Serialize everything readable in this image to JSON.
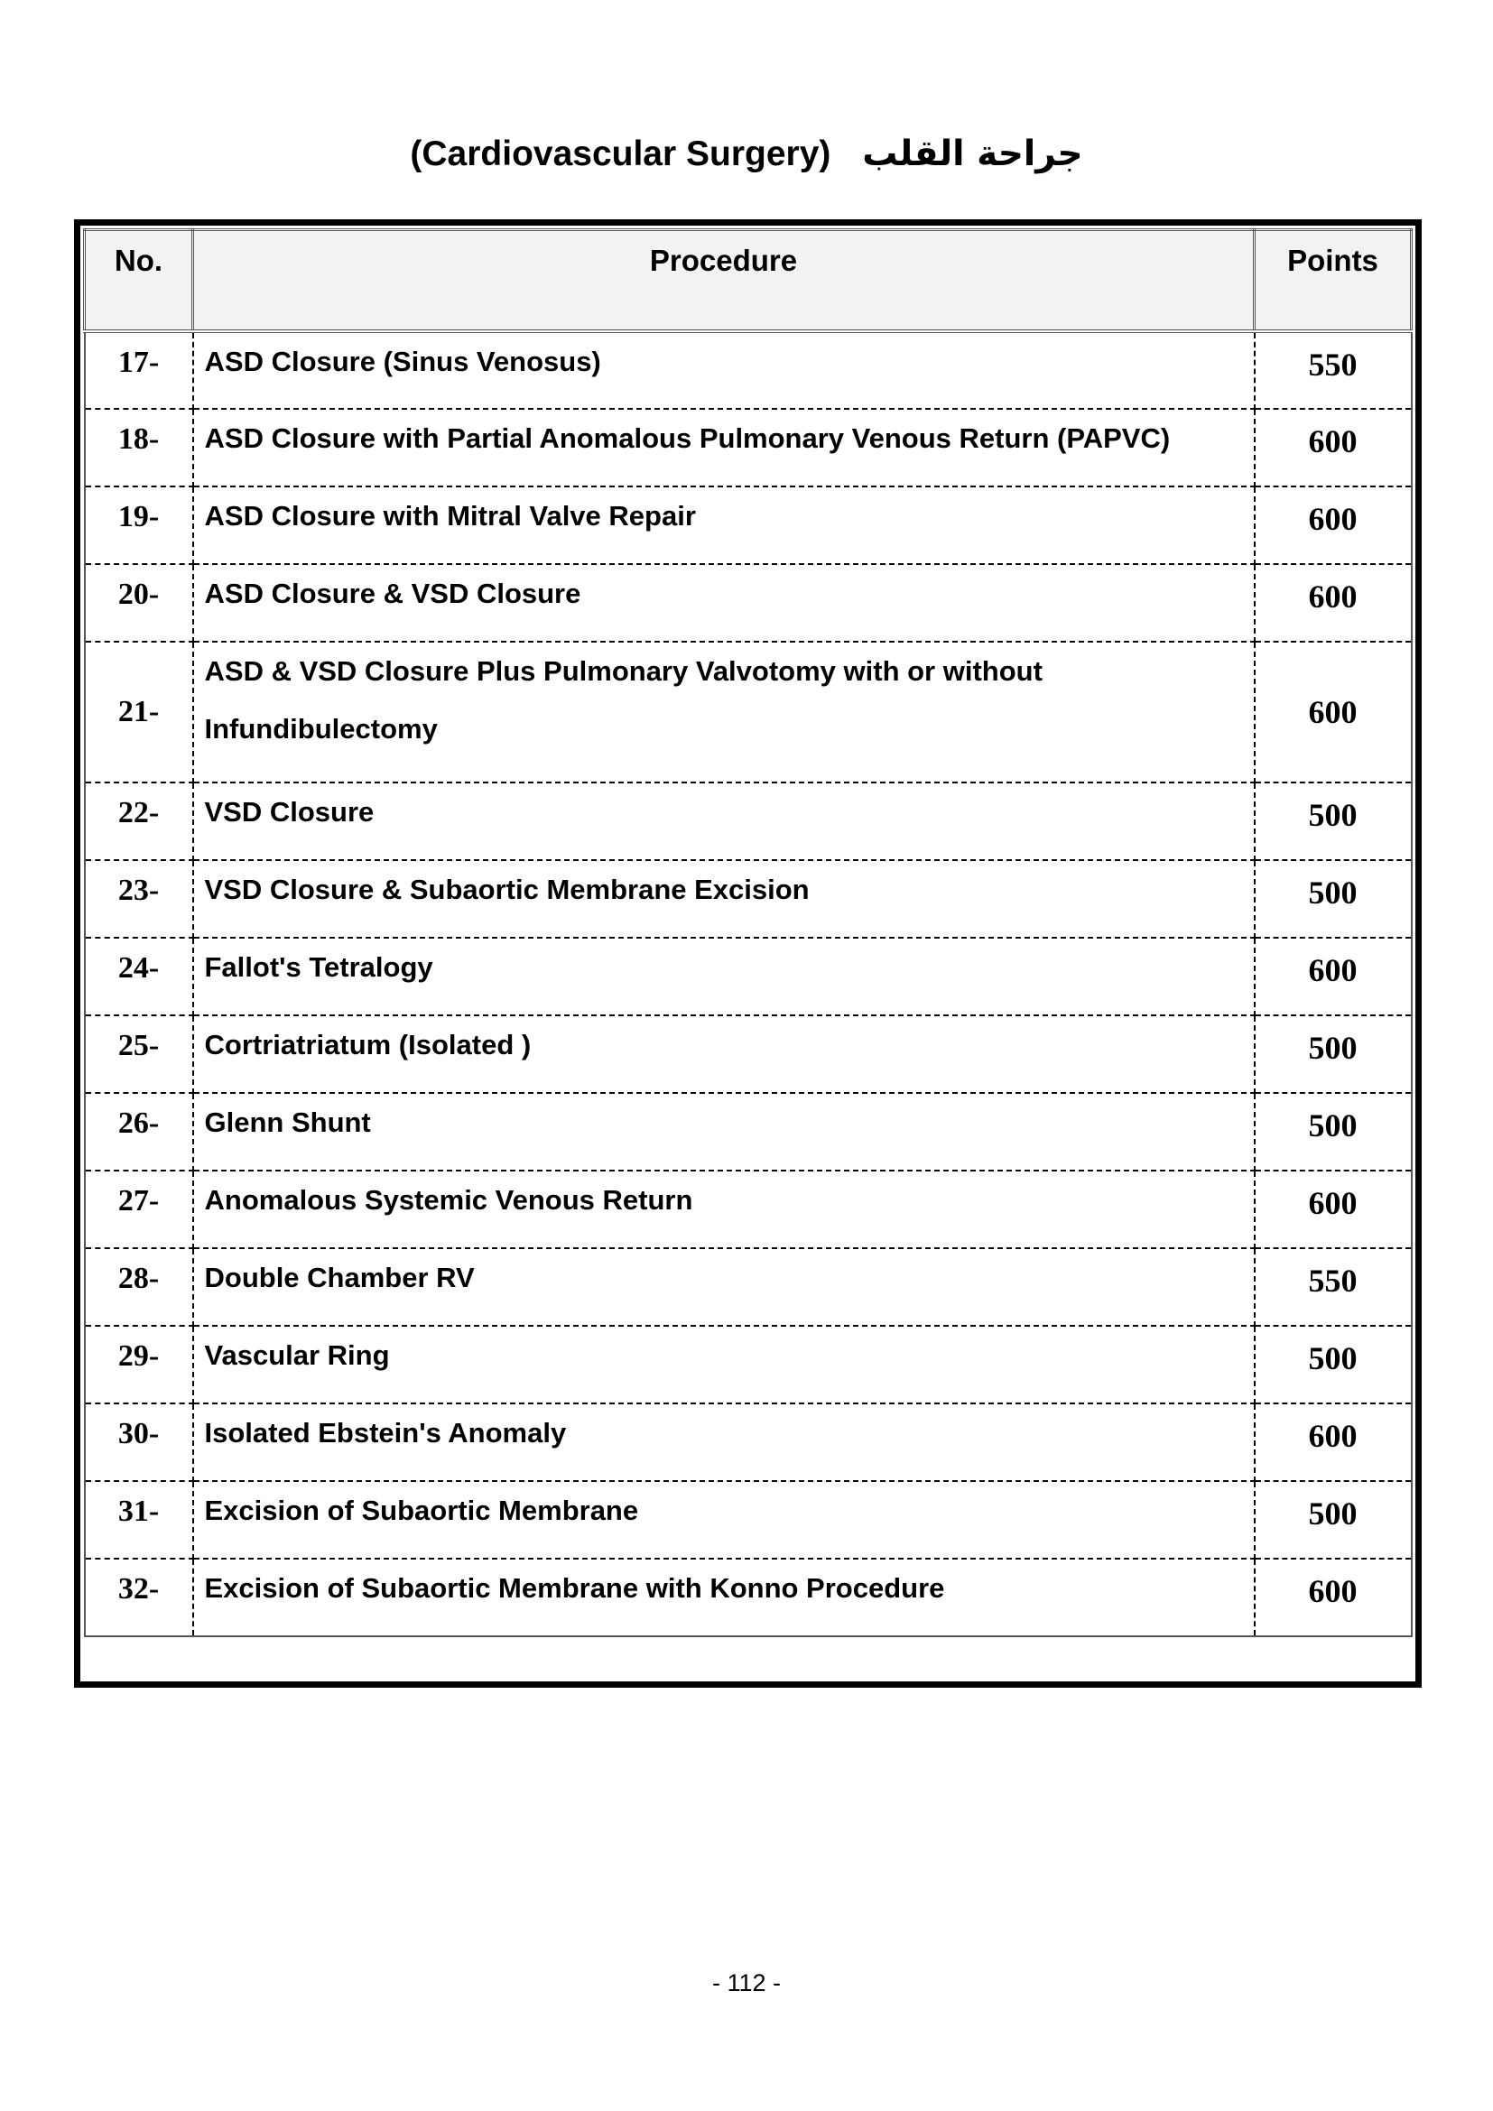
{
  "title": {
    "english": "(Cardiovascular Surgery)",
    "arabic": "جراحة القلب"
  },
  "table": {
    "headers": {
      "no": "No.",
      "procedure": "Procedure",
      "points": "Points"
    },
    "rows": [
      {
        "no": "17-",
        "procedure": "ASD Closure (Sinus Venosus)",
        "points": "550"
      },
      {
        "no": "18-",
        "procedure": "ASD Closure with Partial Anomalous Pulmonary Venous Return (PAPVC)",
        "points": "600"
      },
      {
        "no": "19-",
        "procedure": "ASD Closure with Mitral Valve Repair",
        "points": "600"
      },
      {
        "no": "20-",
        "procedure": "ASD Closure & VSD Closure",
        "points": "600"
      },
      {
        "no": "21-",
        "procedure": "ASD & VSD Closure Plus Pulmonary Valvotomy with or without Infundibulectomy",
        "points": "600"
      },
      {
        "no": "22-",
        "procedure": "VSD Closure",
        "points": "500"
      },
      {
        "no": "23-",
        "procedure": "VSD Closure & Subaortic Membrane Excision",
        "points": "500"
      },
      {
        "no": "24-",
        "procedure": "Fallot's Tetralogy",
        "points": "600"
      },
      {
        "no": "25-",
        "procedure": "Cortriatriatum (Isolated )",
        "points": "500"
      },
      {
        "no": "26-",
        "procedure": "Glenn Shunt",
        "points": "500"
      },
      {
        "no": "27-",
        "procedure": "Anomalous Systemic Venous Return",
        "points": "600"
      },
      {
        "no": "28-",
        "procedure": "Double Chamber RV",
        "points": "550"
      },
      {
        "no": "29-",
        "procedure": "Vascular Ring",
        "points": "500"
      },
      {
        "no": "30-",
        "procedure": "Isolated Ebstein's Anomaly",
        "points": "600"
      },
      {
        "no": "31-",
        "procedure": "Excision of Subaortic Membrane",
        "points": "500"
      },
      {
        "no": "32-",
        "procedure": "Excision of Subaortic Membrane with Konno Procedure",
        "points": "600"
      }
    ]
  },
  "footer": {
    "page_number": "- 112 -"
  }
}
